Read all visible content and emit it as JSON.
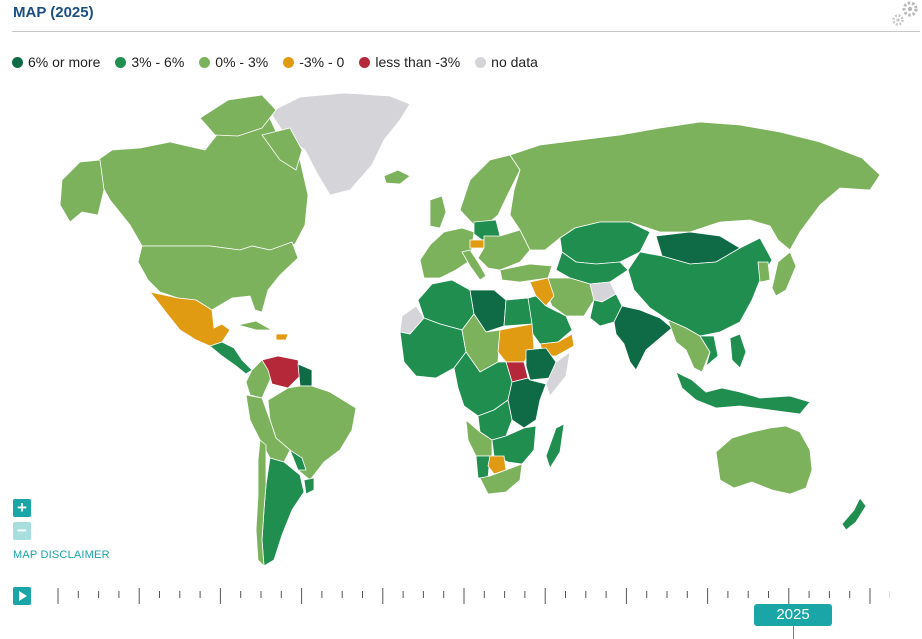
{
  "header": {
    "title": "MAP (2025)"
  },
  "legend": [
    {
      "label": "6% or more",
      "color": "#0e6b45"
    },
    {
      "label": "3% - 6%",
      "color": "#1f8e4f"
    },
    {
      "label": "0% - 3%",
      "color": "#7db25d"
    },
    {
      "label": "-3% - 0",
      "color": "#e09b12"
    },
    {
      "label": "less than -3%",
      "color": "#b5283a"
    },
    {
      "label": "no data",
      "color": "#d5d5d9"
    }
  ],
  "controls": {
    "zoom_in": "+",
    "zoom_out": "−",
    "disclaimer": "MAP DISCLAIMER"
  },
  "timeline": {
    "current_year": "2025"
  }
}
